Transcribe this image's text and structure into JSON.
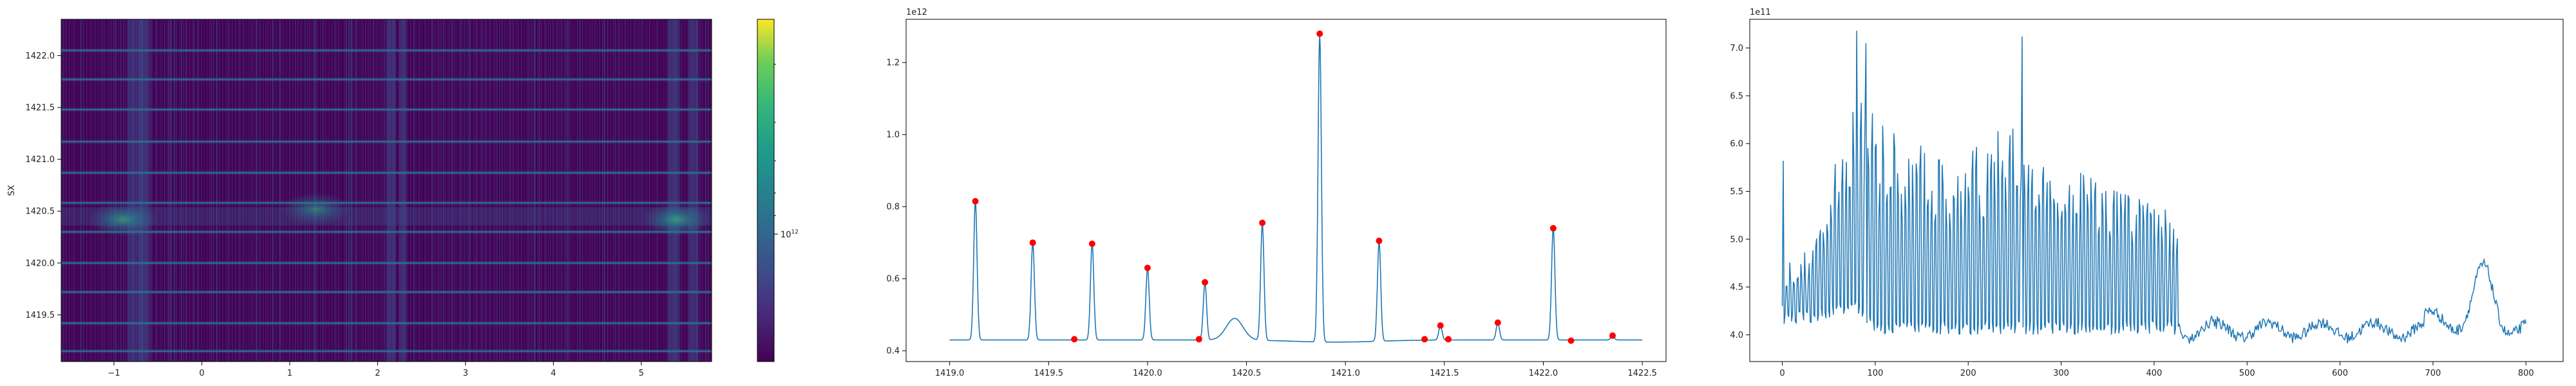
{
  "chart_data": [
    {
      "type": "heatmap",
      "ylabel": "SX",
      "xlim": [
        -1.6,
        5.8
      ],
      "ylim": [
        1419.05,
        1422.35
      ],
      "x_ticks": [
        -1,
        0,
        1,
        2,
        3,
        4,
        5
      ],
      "x_tick_labels": [
        "−1",
        "0",
        "1",
        "2",
        "3",
        "4",
        "5"
      ],
      "y_ticks": [
        1419.5,
        1420.0,
        1420.5,
        1421.0,
        1421.5,
        1422.0
      ],
      "y_tick_labels": [
        "1419.5",
        "1420.0",
        "1420.5",
        "1421.0",
        "1421.5",
        "1422.0"
      ],
      "colormap": "viridis",
      "colorbar": {
        "scale": "log",
        "labelled_tick": "10^12",
        "tick_base": "10",
        "tick_exp": "12"
      },
      "bright_rows_sx": [
        1419.15,
        1419.42,
        1419.72,
        1420.0,
        1420.3,
        1420.58,
        1420.87,
        1421.17,
        1421.48,
        1421.77,
        1422.05
      ],
      "hot_spots": [
        {
          "x": -0.9,
          "y": 1420.42,
          "strength": 0.75
        },
        {
          "x": 1.3,
          "y": 1420.52,
          "strength": 0.6
        },
        {
          "x": 5.4,
          "y": 1420.42,
          "strength": 0.8
        }
      ]
    },
    {
      "type": "line",
      "xlim": [
        1418.78,
        1422.62
      ],
      "ylim": [
        0.37,
        1.32
      ],
      "x_ticks": [
        1419.0,
        1419.5,
        1420.0,
        1420.5,
        1421.0,
        1421.5,
        1422.0,
        1422.5
      ],
      "x_tick_labels": [
        "1419.0",
        "1419.5",
        "1420.0",
        "1420.5",
        "1421.0",
        "1421.5",
        "1422.0",
        "1422.5"
      ],
      "y_ticks": [
        0.4,
        0.6,
        0.8,
        1.0,
        1.2
      ],
      "y_tick_labels": [
        "0.4",
        "0.6",
        "0.8",
        "1.0",
        "1.2"
      ],
      "offset_text": "1e12",
      "baseline": 0.43,
      "series_color": "#1f77b4",
      "marker_color": "#ff0000",
      "peaks": [
        {
          "x": 1419.13,
          "y": 0.815
        },
        {
          "x": 1419.42,
          "y": 0.7
        },
        {
          "x": 1419.72,
          "y": 0.697
        },
        {
          "x": 1420.0,
          "y": 0.63
        },
        {
          "x": 1420.29,
          "y": 0.59
        },
        {
          "x": 1420.58,
          "y": 0.755
        },
        {
          "x": 1420.87,
          "y": 1.28
        },
        {
          "x": 1421.17,
          "y": 0.705
        },
        {
          "x": 1421.48,
          "y": 0.47
        },
        {
          "x": 1421.77,
          "y": 0.478
        },
        {
          "x": 1422.05,
          "y": 0.74
        },
        {
          "x": 1422.35,
          "y": 0.442
        }
      ],
      "minor_markers": [
        {
          "x": 1419.63,
          "y": 0.432
        },
        {
          "x": 1420.26,
          "y": 0.432
        },
        {
          "x": 1421.4,
          "y": 0.432
        },
        {
          "x": 1421.52,
          "y": 0.432
        },
        {
          "x": 1422.14,
          "y": 0.428
        }
      ],
      "bump": {
        "x": 1420.44,
        "y": 0.49,
        "width": 0.06
      }
    },
    {
      "type": "line",
      "xlim": [
        -35,
        840
      ],
      "ylim": [
        3.72,
        7.3
      ],
      "x_ticks": [
        0,
        100,
        200,
        300,
        400,
        500,
        600,
        700,
        800
      ],
      "x_tick_labels": [
        "0",
        "100",
        "200",
        "300",
        "400",
        "500",
        "600",
        "700",
        "800"
      ],
      "y_ticks": [
        4.0,
        4.5,
        5.0,
        5.5,
        6.0,
        6.5,
        7.0
      ],
      "y_tick_labels": [
        "4.0",
        "4.5",
        "5.0",
        "5.5",
        "6.0",
        "6.5",
        "7.0"
      ],
      "offset_text": "1e11",
      "series_color": "#1f77b4",
      "x_max": 800,
      "shape": {
        "start_spike": 5.82,
        "osc_end": 425,
        "envelope_knots": [
          [
            0,
            4.1,
            4.8
          ],
          [
            30,
            4.1,
            4.9
          ],
          [
            60,
            4.2,
            5.9
          ],
          [
            80,
            4.2,
            6.9
          ],
          [
            100,
            4.0,
            6.3
          ],
          [
            150,
            4.0,
            6.0
          ],
          [
            200,
            4.0,
            5.9
          ],
          [
            250,
            4.0,
            6.3
          ],
          [
            300,
            4.0,
            5.8
          ],
          [
            350,
            4.0,
            5.6
          ],
          [
            400,
            4.0,
            5.4
          ],
          [
            425,
            4.0,
            5.3
          ]
        ],
        "extra_spikes": [
          [
            80,
            7.18
          ],
          [
            90,
            7.05
          ],
          [
            258,
            7.12
          ]
        ],
        "tail_base": 4.05,
        "bump": {
          "x": 755,
          "y": 4.82,
          "width": 15
        }
      }
    }
  ]
}
